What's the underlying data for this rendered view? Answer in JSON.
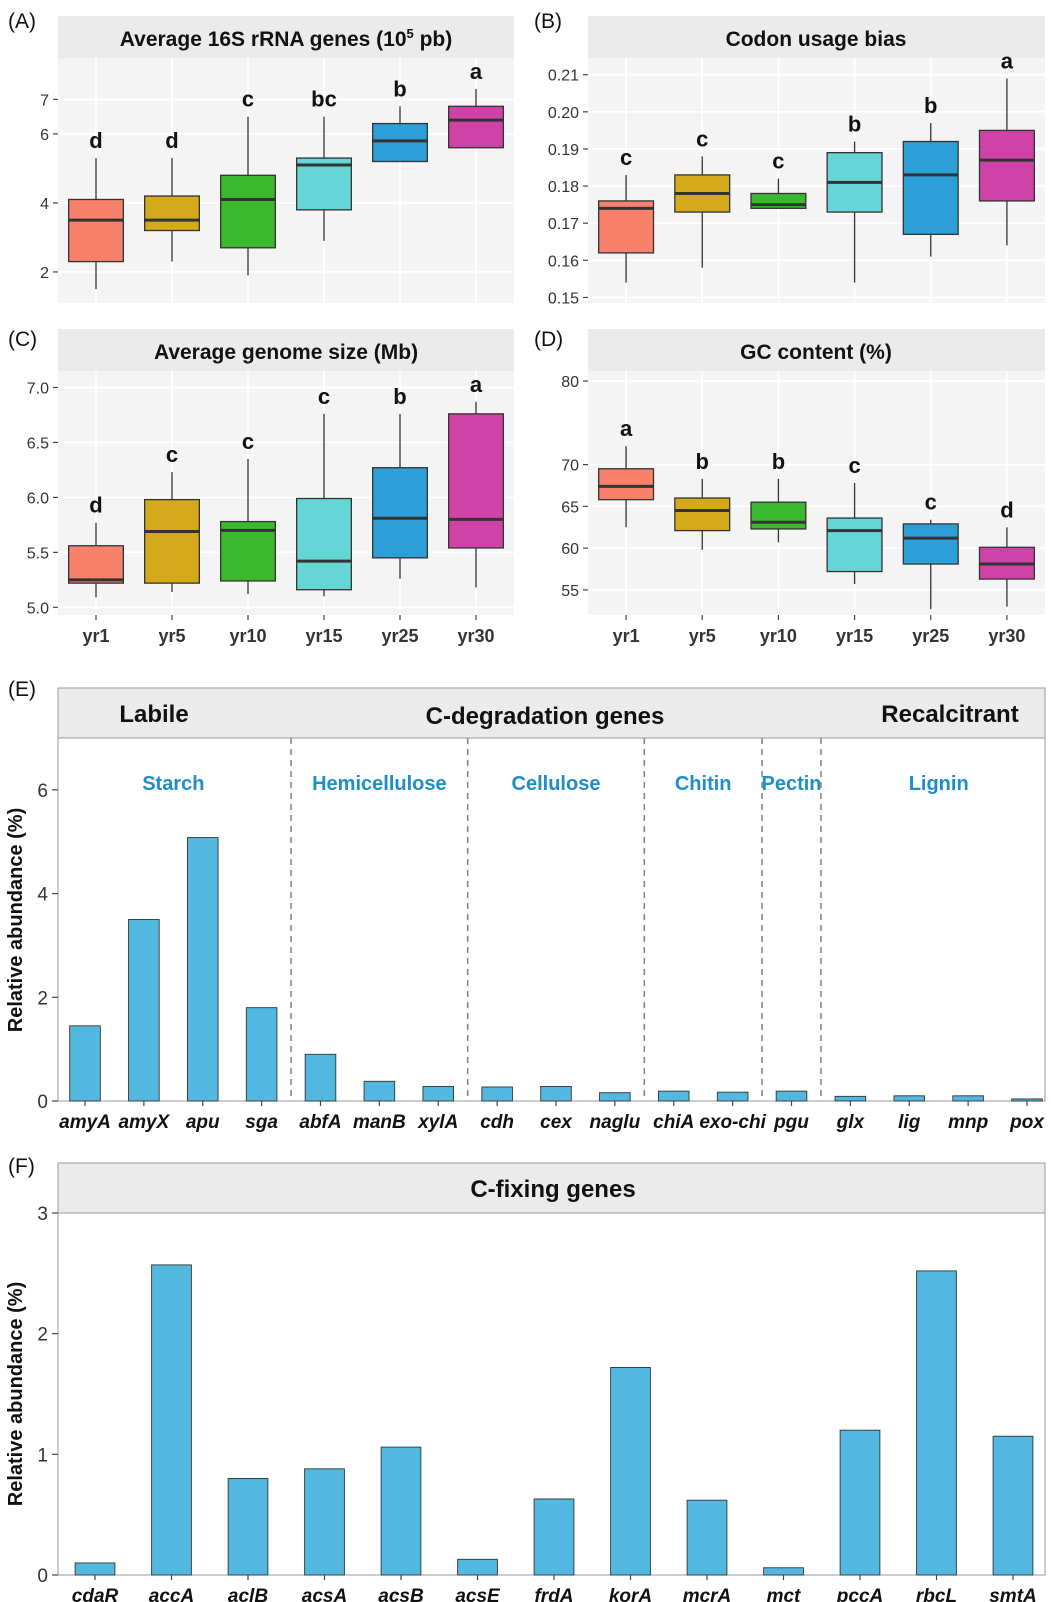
{
  "chart_data": [
    {
      "panel": "(A)",
      "type": "box",
      "title": "Average 16S rRNA genes (10",
      "title_sup": "5",
      "title_tail": " pb)",
      "categories": [
        "yr1",
        "yr5",
        "yr10",
        "yr15",
        "yr25",
        "yr30"
      ],
      "colors": [
        "#F8816B",
        "#D4AA1C",
        "#3CB830",
        "#65D5D5",
        "#2D9FD8",
        "#CF43A8"
      ],
      "boxes": [
        {
          "min": 1.5,
          "q1": 2.3,
          "median": 3.5,
          "q3": 4.1,
          "max": 5.3
        },
        {
          "min": 2.3,
          "q1": 3.2,
          "median": 3.5,
          "q3": 4.2,
          "max": 5.3
        },
        {
          "min": 1.9,
          "q1": 2.7,
          "median": 4.1,
          "q3": 4.8,
          "max": 6.5
        },
        {
          "min": 2.9,
          "q1": 3.8,
          "median": 5.1,
          "q3": 5.3,
          "max": 6.5
        },
        {
          "min": 5.2,
          "q1": 5.2,
          "median": 5.8,
          "q3": 6.3,
          "max": 6.8
        },
        {
          "min": 5.6,
          "q1": 5.6,
          "median": 6.4,
          "q3": 6.8,
          "max": 7.3
        }
      ],
      "letters": [
        "d",
        "d",
        "c",
        "bc",
        "b",
        "a"
      ],
      "ylim": [
        1.1,
        8.2
      ],
      "yticks": [
        2,
        4,
        6,
        7
      ],
      "ytick_labels": [
        "2",
        "4",
        "6",
        "7"
      ]
    },
    {
      "panel": "(B)",
      "type": "box",
      "title": "Codon usage bias",
      "categories": [
        "yr1",
        "yr5",
        "yr10",
        "yr15",
        "yr25",
        "yr30"
      ],
      "colors": [
        "#F8816B",
        "#D4AA1C",
        "#3CB830",
        "#65D5D5",
        "#2D9FD8",
        "#CF43A8"
      ],
      "boxes": [
        {
          "min": 0.154,
          "q1": 0.162,
          "median": 0.174,
          "q3": 0.176,
          "max": 0.183
        },
        {
          "min": 0.158,
          "q1": 0.173,
          "median": 0.178,
          "q3": 0.183,
          "max": 0.188
        },
        {
          "min": 0.174,
          "q1": 0.174,
          "median": 0.175,
          "q3": 0.178,
          "max": 0.182
        },
        {
          "min": 0.154,
          "q1": 0.173,
          "median": 0.181,
          "q3": 0.189,
          "max": 0.192
        },
        {
          "min": 0.161,
          "q1": 0.167,
          "median": 0.183,
          "q3": 0.192,
          "max": 0.197
        },
        {
          "min": 0.164,
          "q1": 0.176,
          "median": 0.187,
          "q3": 0.195,
          "max": 0.209
        }
      ],
      "letters": [
        "c",
        "c",
        "c",
        "b",
        "b",
        "a"
      ],
      "ylim": [
        0.1485,
        0.2145
      ],
      "yticks": [
        0.15,
        0.16,
        0.17,
        0.18,
        0.19,
        0.2,
        0.21
      ],
      "ytick_labels": [
        "0.15",
        "0.16",
        "0.17",
        "0.18",
        "0.19",
        "0.20",
        "0.21"
      ]
    },
    {
      "panel": "(C)",
      "type": "box",
      "title": "Average genome size (Mb)",
      "categories": [
        "yr1",
        "yr5",
        "yr10",
        "yr15",
        "yr25",
        "yr30"
      ],
      "colors": [
        "#F8816B",
        "#D4AA1C",
        "#3CB830",
        "#65D5D5",
        "#2D9FD8",
        "#CF43A8"
      ],
      "boxes": [
        {
          "min": 5.09,
          "q1": 5.22,
          "median": 5.25,
          "q3": 5.56,
          "max": 5.77
        },
        {
          "min": 5.14,
          "q1": 5.22,
          "median": 5.69,
          "q3": 5.98,
          "max": 6.23
        },
        {
          "min": 5.12,
          "q1": 5.24,
          "median": 5.7,
          "q3": 5.78,
          "max": 6.35
        },
        {
          "min": 5.1,
          "q1": 5.16,
          "median": 5.42,
          "q3": 5.99,
          "max": 6.76
        },
        {
          "min": 5.26,
          "q1": 5.45,
          "median": 5.81,
          "q3": 6.27,
          "max": 6.76
        },
        {
          "min": 5.18,
          "q1": 5.54,
          "median": 5.8,
          "q3": 6.76,
          "max": 6.87
        }
      ],
      "letters": [
        "d",
        "c",
        "c",
        "c",
        "b",
        "a"
      ],
      "ylim": [
        4.93,
        7.15
      ],
      "yticks": [
        5.0,
        5.5,
        6.0,
        6.5,
        7.0
      ],
      "ytick_labels": [
        "5.0",
        "5.5",
        "6.0",
        "6.5",
        "7.0"
      ]
    },
    {
      "panel": "(D)",
      "type": "box",
      "title": "GC content (%)",
      "categories": [
        "yr1",
        "yr5",
        "yr10",
        "yr15",
        "yr25",
        "yr30"
      ],
      "colors": [
        "#F8816B",
        "#D4AA1C",
        "#3CB830",
        "#65D5D5",
        "#2D9FD8",
        "#CF43A8"
      ],
      "boxes": [
        {
          "min": 62.5,
          "q1": 65.8,
          "median": 67.4,
          "q3": 69.5,
          "max": 72.2
        },
        {
          "min": 59.8,
          "q1": 62.1,
          "median": 64.5,
          "q3": 66.0,
          "max": 68.3
        },
        {
          "min": 60.7,
          "q1": 62.3,
          "median": 63.1,
          "q3": 65.5,
          "max": 68.3
        },
        {
          "min": 55.7,
          "q1": 57.2,
          "median": 62.1,
          "q3": 63.6,
          "max": 67.8
        },
        {
          "min": 52.7,
          "q1": 58.1,
          "median": 61.2,
          "q3": 62.9,
          "max": 63.4
        },
        {
          "min": 53.0,
          "q1": 56.3,
          "median": 58.1,
          "q3": 60.1,
          "max": 62.5
        }
      ],
      "letters": [
        "a",
        "b",
        "b",
        "c",
        "c",
        "d"
      ],
      "ylim": [
        52.0,
        81.2
      ],
      "yticks": [
        55,
        60,
        65,
        70,
        80
      ],
      "ytick_labels": [
        "55",
        "60",
        "65",
        "70",
        "80"
      ]
    },
    {
      "panel": "(E)",
      "type": "bar",
      "title": "C-degradation genes",
      "left_header": "Labile",
      "right_header": "Recalcitrant",
      "ylabel": "Relative abundance (%)",
      "bar_color": "#52B8E0",
      "group_color": "#1F8DC8",
      "categories": [
        "amyA",
        "amyX",
        "apu",
        "sga",
        "abfA",
        "manB",
        "xylA",
        "cdh",
        "cex",
        "naglu",
        "chiA",
        "exo-chi",
        "pgu",
        "glx",
        "lig",
        "mnp",
        "pox"
      ],
      "values": [
        1.45,
        3.5,
        5.08,
        1.8,
        0.9,
        0.38,
        0.28,
        0.27,
        0.28,
        0.16,
        0.19,
        0.17,
        0.19,
        0.09,
        0.1,
        0.1,
        0.04
      ],
      "groups": [
        {
          "name": "Starch",
          "start": 0,
          "end": 3
        },
        {
          "name": "Hemicellulose",
          "start": 4,
          "end": 6
        },
        {
          "name": "Cellulose",
          "start": 7,
          "end": 9
        },
        {
          "name": "Chitin",
          "start": 10,
          "end": 11
        },
        {
          "name": "Pectin",
          "start": 12,
          "end": 12
        },
        {
          "name": "Lignin",
          "start": 13,
          "end": 16
        }
      ],
      "ylim": [
        0,
        7.0
      ],
      "yticks": [
        0,
        2,
        4,
        6
      ],
      "ytick_labels": [
        "0",
        "2",
        "4",
        "6"
      ]
    },
    {
      "panel": "(F)",
      "type": "bar",
      "title": "C-fixing genes",
      "ylabel": "Relative abundance (%)",
      "bar_color": "#52B8E0",
      "categories": [
        "cdaR",
        "accA",
        "aclB",
        "acsA",
        "acsB",
        "acsE",
        "frdA",
        "korA",
        "mcrA",
        "mct",
        "pccA",
        "rbcL",
        "smtA"
      ],
      "values": [
        0.1,
        2.57,
        0.8,
        0.88,
        1.06,
        0.13,
        0.63,
        1.72,
        0.62,
        0.06,
        1.2,
        2.52,
        1.15
      ],
      "ylim": [
        0,
        3.0
      ],
      "yticks": [
        0,
        1,
        2,
        3
      ],
      "ytick_labels": [
        "0",
        "1",
        "2",
        "3"
      ]
    }
  ]
}
